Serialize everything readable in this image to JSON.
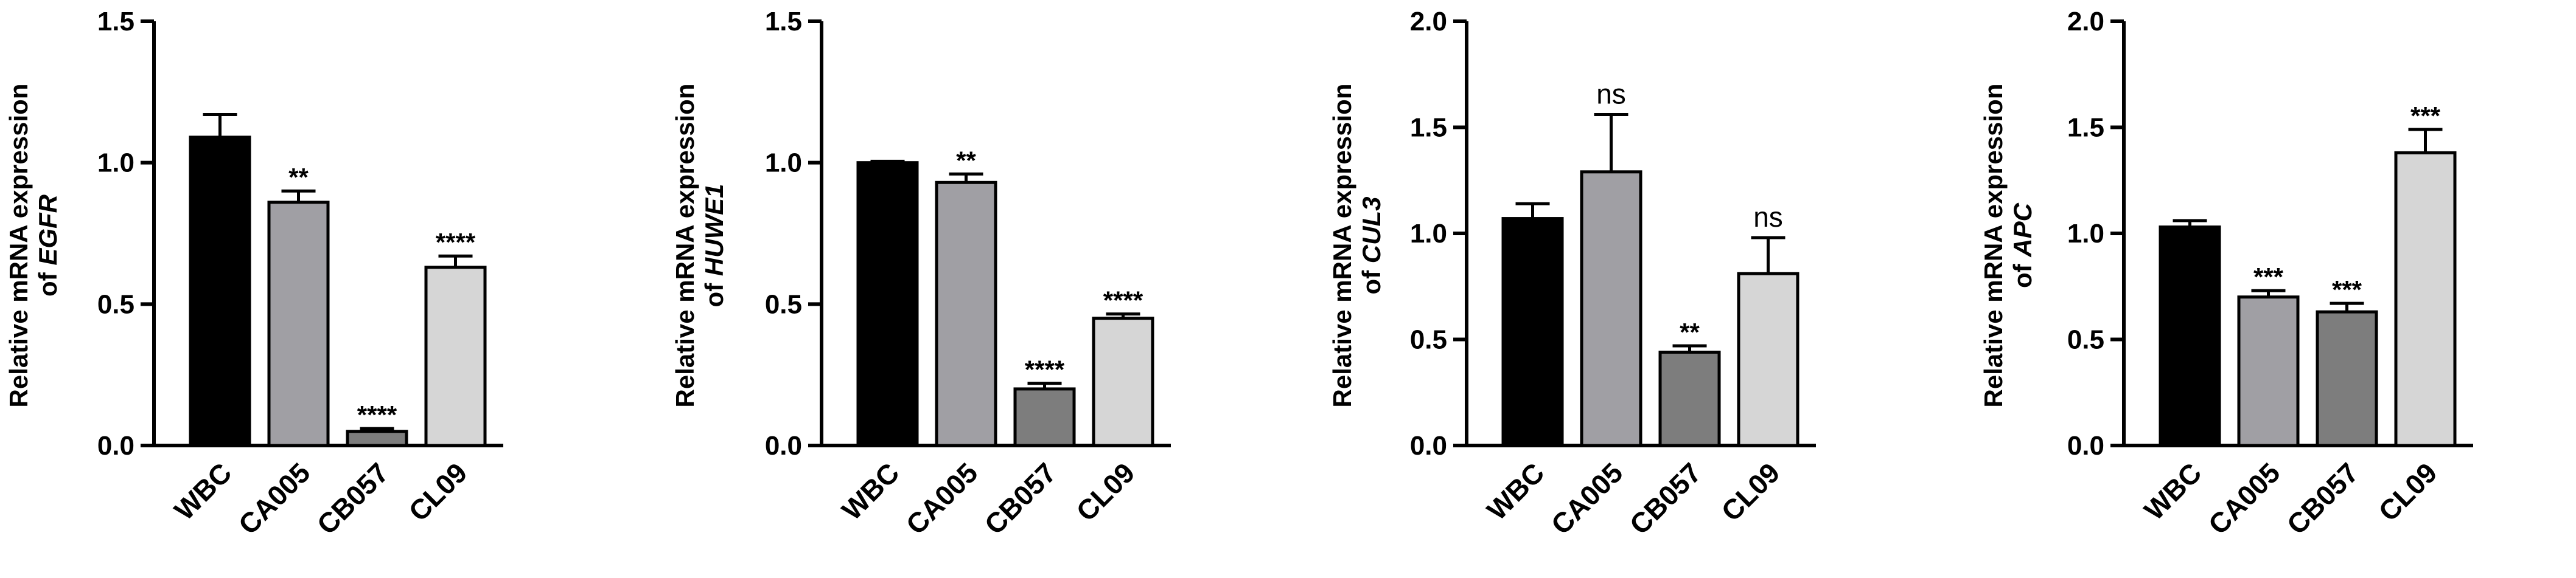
{
  "chart_data": [
    {
      "type": "bar",
      "ylabel_line1": "Relative mRNA expression",
      "ylabel_prefix": "of ",
      "gene": "EGFR",
      "ylim": [
        0,
        1.5
      ],
      "yticks": [
        "0.0",
        "0.5",
        "1.0",
        "1.5"
      ],
      "ytick_values": [
        0,
        0.5,
        1.0,
        1.5
      ],
      "categories": [
        "WBC",
        "CA005",
        "CB057",
        "CL09"
      ],
      "values": [
        1.09,
        0.86,
        0.05,
        0.63
      ],
      "errors": [
        0.08,
        0.04,
        0.01,
        0.04
      ],
      "significance": [
        "",
        "**",
        "****",
        "****"
      ]
    },
    {
      "type": "bar",
      "ylabel_line1": "Relative mRNA expression",
      "ylabel_prefix": "of ",
      "gene": "HUWE1",
      "ylim": [
        0,
        1.5
      ],
      "yticks": [
        "0.0",
        "0.5",
        "1.0",
        "1.5"
      ],
      "ytick_values": [
        0,
        0.5,
        1.0,
        1.5
      ],
      "categories": [
        "WBC",
        "CA005",
        "CB057",
        "CL09"
      ],
      "values": [
        1.0,
        0.93,
        0.2,
        0.45
      ],
      "errors": [
        0.005,
        0.03,
        0.02,
        0.015
      ],
      "significance": [
        "",
        "**",
        "****",
        "****"
      ]
    },
    {
      "type": "bar",
      "ylabel_line1": "Relative mRNA expression",
      "ylabel_prefix": "of ",
      "gene": "CUL3",
      "ylim": [
        0,
        2.0
      ],
      "yticks": [
        "0.0",
        "0.5",
        "1.0",
        "1.5",
        "2.0"
      ],
      "ytick_values": [
        0,
        0.5,
        1.0,
        1.5,
        2.0
      ],
      "categories": [
        "WBC",
        "CA005",
        "CB057",
        "CL09"
      ],
      "values": [
        1.07,
        1.29,
        0.44,
        0.81
      ],
      "errors": [
        0.07,
        0.27,
        0.03,
        0.17
      ],
      "significance": [
        "",
        "ns",
        "**",
        "ns"
      ]
    },
    {
      "type": "bar",
      "ylabel_line1": "Relative mRNA expression",
      "ylabel_prefix": "of ",
      "gene": "APC",
      "ylim": [
        0,
        2.0
      ],
      "yticks": [
        "0.0",
        "0.5",
        "1.0",
        "1.5",
        "2.0"
      ],
      "ytick_values": [
        0,
        0.5,
        1.0,
        1.5,
        2.0
      ],
      "categories": [
        "WBC",
        "CA005",
        "CB057",
        "CL09"
      ],
      "values": [
        1.03,
        0.7,
        0.63,
        1.38
      ],
      "errors": [
        0.03,
        0.03,
        0.04,
        0.11
      ],
      "significance": [
        "",
        "***",
        "***",
        "***"
      ]
    }
  ],
  "colors": {
    "bars": [
      "#000000",
      "#a09fa4",
      "#7d7d7d",
      "#d6d6d6"
    ],
    "axis": "#000000"
  }
}
